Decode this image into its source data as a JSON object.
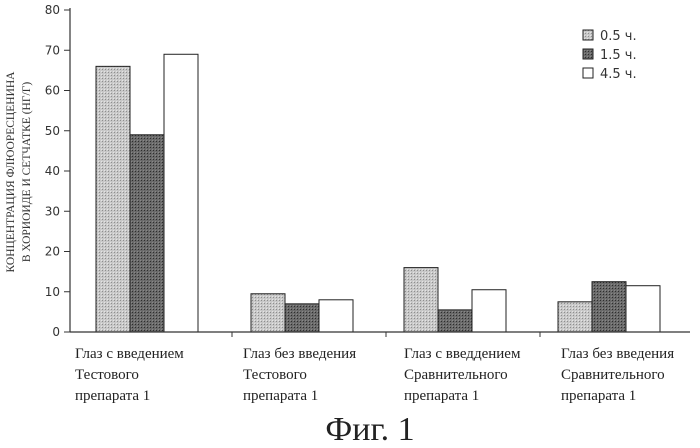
{
  "chart_data": {
    "type": "bar",
    "ylabel_lines": [
      "КОНЦЕНТРАЦИЯ ФЛЮОРЕСЦЕНИНА",
      "В ХОРИОИДЕ И СЕТЧАТКЕ (НГ/Г)"
    ],
    "ylim": [
      0,
      80
    ],
    "yticks": [
      "0",
      "10",
      "20",
      "30",
      "40",
      "50",
      "60",
      "70",
      "80"
    ],
    "legend_position": "top-right",
    "categories": [
      [
        "Глаз с введением",
        "Тестового",
        "препарата 1"
      ],
      [
        "Глаз без введения",
        "Тестового",
        "препарата 1"
      ],
      [
        "Глаз с введдением",
        "Сравнительного",
        "препарата 1"
      ],
      [
        "Глаз без введения",
        "Сравнительного",
        "препарата 1"
      ]
    ],
    "series": [
      {
        "name": "0.5 ч.",
        "values": [
          66,
          9.5,
          16,
          7.5
        ],
        "color": "#b8b8b8"
      },
      {
        "name": "1.5 ч.",
        "values": [
          49,
          7,
          5.5,
          12.5
        ],
        "color": "#555555"
      },
      {
        "name": "4.5 ч.",
        "values": [
          69,
          8,
          10.5,
          11.5
        ],
        "color": "#ffffff"
      }
    ]
  },
  "caption": "Фиг. 1"
}
